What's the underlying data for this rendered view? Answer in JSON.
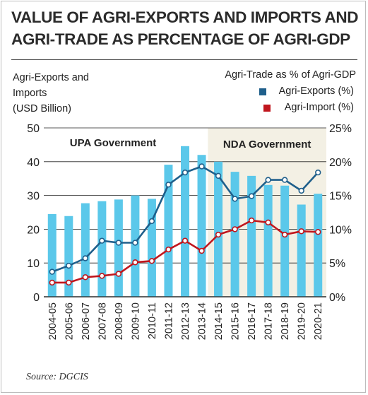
{
  "title": "VALUE OF AGRI-EXPORTS AND IMPORTS AND AGRI-TRADE AS PERCENTAGE OF AGRI-GDP",
  "left_axis_title": [
    "Agri-Exports and",
    "Imports",
    "(USD Billion)"
  ],
  "right_axis_title": "Agri-Trade as % of Agri-GDP",
  "legend": [
    {
      "label": "Agri-Exports (%)",
      "color": "#1f5f8b"
    },
    {
      "label": "Agri-Import (%)",
      "color": "#c0161d"
    }
  ],
  "source": "Source: DGCIS",
  "chart_data": {
    "type": "bar+line",
    "categories": [
      "2004-05",
      "2005-06",
      "2006-07",
      "2007-08",
      "2008-09",
      "2009-10",
      "2010-11",
      "2011-12",
      "2012-13",
      "2013-14",
      "2014-15",
      "2015-16",
      "2016-17",
      "2017-18",
      "2018-19",
      "2019-20",
      "2020-21"
    ],
    "bars": {
      "axis": "left",
      "unit": "USD Billion",
      "color": "#5bc8ea",
      "values": [
        24.5,
        23.9,
        27.7,
        28.3,
        28.8,
        30.0,
        29.0,
        39.1,
        44.6,
        42.0,
        40.0,
        37.0,
        35.8,
        33.1,
        32.9,
        27.3,
        30.5
      ]
    },
    "series": [
      {
        "name": "Agri-Exports (%)",
        "axis": "right",
        "color": "#1f5f8b",
        "values": [
          3.7,
          4.6,
          5.7,
          8.3,
          8.0,
          8.0,
          11.2,
          16.6,
          18.4,
          19.3,
          17.9,
          14.5,
          14.9,
          17.3,
          17.3,
          15.7,
          18.4
        ]
      },
      {
        "name": "Agri-Import (%)",
        "axis": "right",
        "color": "#c0161d",
        "values": [
          2.1,
          2.1,
          2.9,
          3.1,
          3.4,
          5.1,
          5.3,
          7.0,
          8.3,
          6.8,
          9.2,
          10.0,
          11.3,
          11.0,
          9.2,
          9.7,
          9.6
        ]
      }
    ],
    "ylim_left": [
      0,
      50
    ],
    "yticks_left": [
      "0",
      "10",
      "20",
      "30",
      "40",
      "50"
    ],
    "ylim_right": [
      0,
      25
    ],
    "yticks_right": [
      "0%",
      "5%",
      "10%",
      "15%",
      "20%",
      "25%"
    ],
    "annotations": [
      {
        "label": "UPA Government",
        "from": "2004-05",
        "to": "2013-14"
      },
      {
        "label": "NDA Government",
        "from": "2014-15",
        "to": "2020-21",
        "shade": "#f3f0e4"
      }
    ],
    "grid": "horizontal",
    "legend_position": "top-right"
  }
}
